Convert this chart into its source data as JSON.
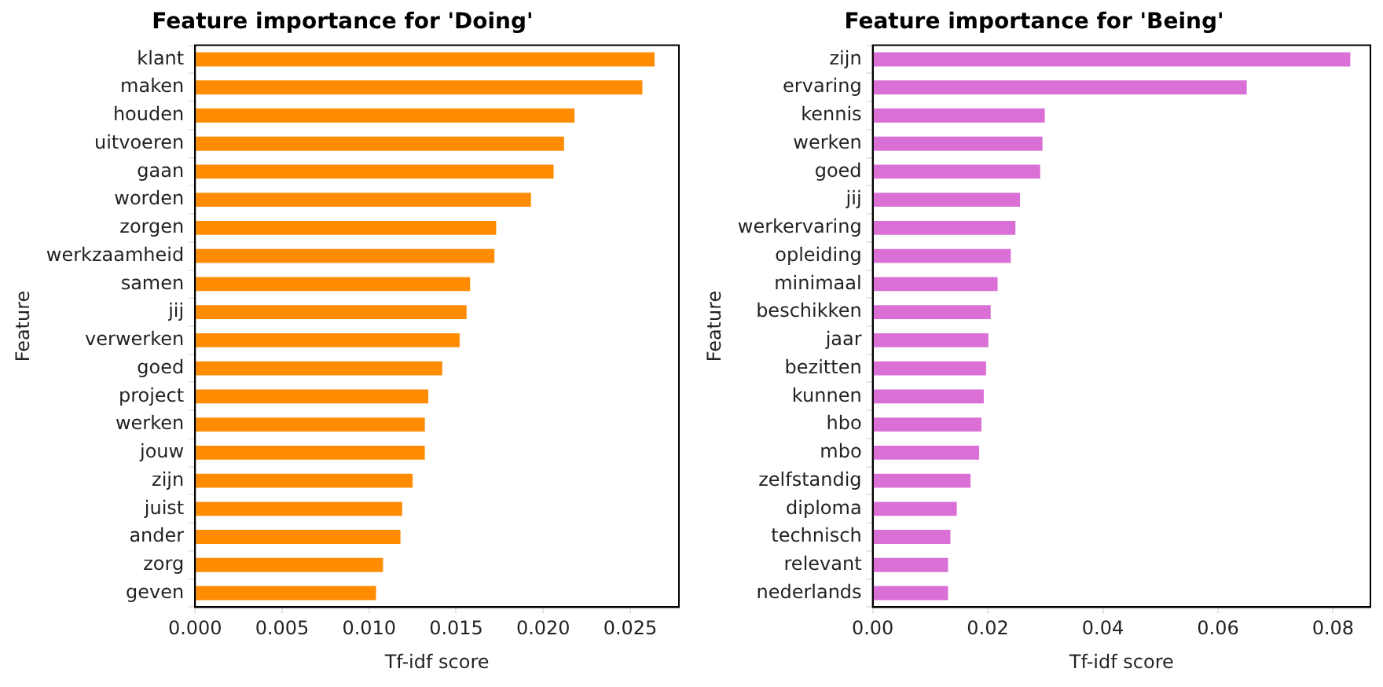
{
  "chart_data": [
    {
      "type": "bar",
      "orientation": "horizontal",
      "title": "Feature importance for 'Doing'",
      "xlabel": "Tf-idf score",
      "ylabel": "Feature",
      "categories": [
        "klant",
        "maken",
        "houden",
        "uitvoeren",
        "gaan",
        "worden",
        "zorgen",
        "werkzaamheid",
        "samen",
        "jij",
        "verwerken",
        "goed",
        "project",
        "werken",
        "jouw",
        "zijn",
        "juist",
        "ander",
        "zorg",
        "geven"
      ],
      "values": [
        0.0264,
        0.0257,
        0.0218,
        0.0212,
        0.0206,
        0.0193,
        0.0173,
        0.0172,
        0.0158,
        0.0156,
        0.0152,
        0.0142,
        0.0134,
        0.0132,
        0.0132,
        0.0125,
        0.0119,
        0.0118,
        0.0108,
        0.0104
      ],
      "color": "#ff8c00",
      "xlim": [
        0,
        0.0278
      ],
      "xticks": [
        {
          "value": 0,
          "label": "0.000"
        },
        {
          "value": 0.005,
          "label": "0.005"
        },
        {
          "value": 0.01,
          "label": "0.010"
        },
        {
          "value": 0.015,
          "label": "0.015"
        },
        {
          "value": 0.02,
          "label": "0.020"
        },
        {
          "value": 0.025,
          "label": "0.025"
        }
      ],
      "grid": false,
      "legend": false
    },
    {
      "type": "bar",
      "orientation": "horizontal",
      "title": "Feature importance for 'Being'",
      "xlabel": "Tf-idf score",
      "ylabel": "Feature",
      "categories": [
        "zijn",
        "ervaring",
        "kennis",
        "werken",
        "goed",
        "jij",
        "werkervaring",
        "opleiding",
        "minimaal",
        "beschikken",
        "jaar",
        "bezitten",
        "kunnen",
        "hbo",
        "mbo",
        "zelfstandig",
        "diploma",
        "technisch",
        "relevant",
        "nederlands"
      ],
      "values": [
        0.083,
        0.065,
        0.0299,
        0.0295,
        0.0291,
        0.0256,
        0.0248,
        0.024,
        0.0217,
        0.0205,
        0.0201,
        0.0197,
        0.0193,
        0.0189,
        0.0185,
        0.017,
        0.0146,
        0.0135,
        0.0131,
        0.0131
      ],
      "color": "#da70d6",
      "xlim": [
        0,
        0.0865
      ],
      "xticks": [
        {
          "value": 0,
          "label": "0.00"
        },
        {
          "value": 0.02,
          "label": "0.02"
        },
        {
          "value": 0.04,
          "label": "0.04"
        },
        {
          "value": 0.06,
          "label": "0.06"
        },
        {
          "value": 0.08,
          "label": "0.08"
        }
      ],
      "grid": false,
      "legend": false
    }
  ]
}
